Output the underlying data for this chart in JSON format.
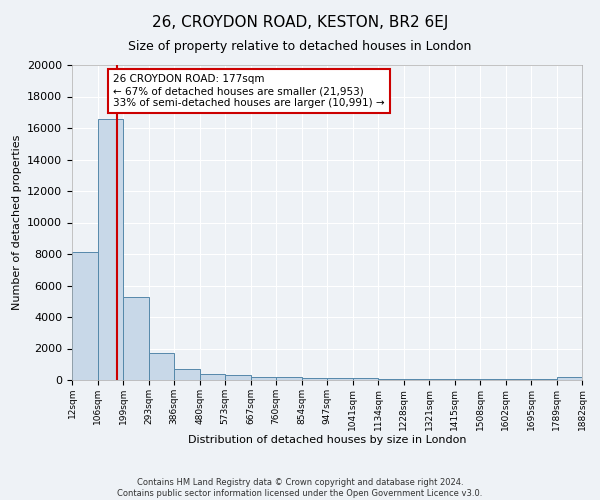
{
  "title": "26, CROYDON ROAD, KESTON, BR2 6EJ",
  "subtitle": "Size of property relative to detached houses in London",
  "xlabel": "Distribution of detached houses by size in London",
  "ylabel": "Number of detached properties",
  "bin_edges": [
    12,
    106,
    199,
    293,
    386,
    480,
    573,
    667,
    760,
    854,
    947,
    1041,
    1134,
    1228,
    1321,
    1415,
    1508,
    1602,
    1695,
    1789,
    1882
  ],
  "bar_heights": [
    8100,
    16600,
    5300,
    1700,
    700,
    350,
    300,
    220,
    190,
    150,
    130,
    110,
    90,
    75,
    65,
    55,
    45,
    38,
    32,
    200
  ],
  "bar_color": "#c8d8e8",
  "bar_edge_color": "#5588aa",
  "property_size": 177,
  "property_line_color": "#cc0000",
  "annotation_text": "26 CROYDON ROAD: 177sqm\n← 67% of detached houses are smaller (21,953)\n33% of semi-detached houses are larger (10,991) →",
  "annotation_box_color": "#ffffff",
  "annotation_border_color": "#cc0000",
  "ylim": [
    0,
    20000
  ],
  "yticks": [
    0,
    2000,
    4000,
    6000,
    8000,
    10000,
    12000,
    14000,
    16000,
    18000,
    20000
  ],
  "footer_line1": "Contains HM Land Registry data © Crown copyright and database right 2024.",
  "footer_line2": "Contains public sector information licensed under the Open Government Licence v3.0.",
  "background_color": "#eef2f6",
  "grid_color": "#ffffff",
  "title_fontsize": 11,
  "subtitle_fontsize": 9,
  "tick_label_fontsize": 6.5,
  "ylabel_fontsize": 8,
  "xlabel_fontsize": 8,
  "ytick_fontsize": 8
}
